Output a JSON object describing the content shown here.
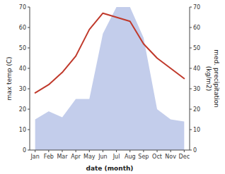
{
  "chart_data": {
    "type": "line",
    "categories": [
      "Jan",
      "Feb",
      "Mar",
      "Apr",
      "May",
      "Jun",
      "Jul",
      "Aug",
      "Sep",
      "Oct",
      "Nov",
      "Dec"
    ],
    "xlabel": "date (month)",
    "ylabel": "max temp (C)",
    "y2label": "med. precipitation\n(kg/m2)",
    "series": [
      {
        "type": "area",
        "axis": "y2",
        "color": "#b8c4e8",
        "values": [
          15,
          19,
          16,
          25,
          25,
          57,
          70,
          70,
          55,
          20,
          15,
          14
        ]
      },
      {
        "type": "line",
        "color": "#c0392b",
        "values": [
          28,
          32,
          38,
          46,
          59,
          67,
          65,
          63,
          52,
          45,
          40,
          35
        ]
      }
    ],
    "ylim": [
      0,
      70
    ],
    "yticks": [
      0,
      10,
      20,
      30,
      40,
      50,
      60,
      70
    ],
    "y2lim": [
      0,
      70
    ],
    "y2ticks": [
      0,
      10,
      20,
      30,
      40,
      50,
      60,
      70
    ],
    "grid": false
  }
}
